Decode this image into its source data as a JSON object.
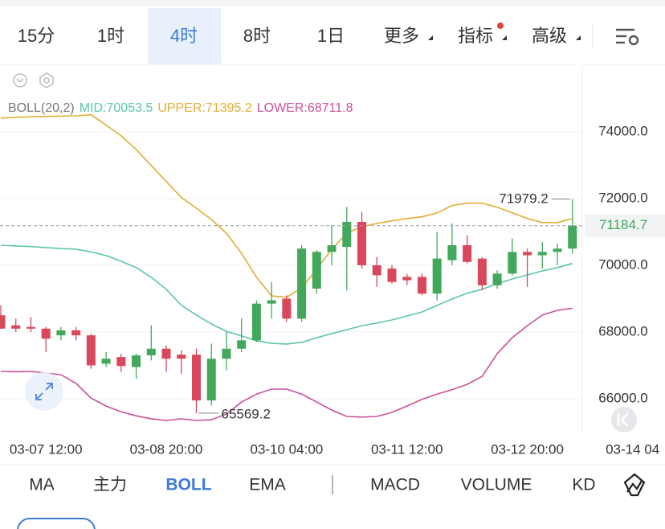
{
  "tabs": [
    {
      "label": "15分",
      "selected": false
    },
    {
      "label": "1时",
      "selected": false
    },
    {
      "label": "4时",
      "selected": true
    },
    {
      "label": "8时",
      "selected": false
    },
    {
      "label": "1日",
      "selected": false
    },
    {
      "label": "更多",
      "selected": false
    },
    {
      "label": "指标",
      "selected": false
    },
    {
      "label": "高级",
      "selected": false
    }
  ],
  "indicator_tabs": [
    {
      "label": "MA",
      "selected": false
    },
    {
      "label": "主力",
      "selected": false
    },
    {
      "label": "BOLL",
      "selected": true
    },
    {
      "label": "EMA",
      "selected": false
    },
    {
      "label": "MACD",
      "selected": false
    },
    {
      "label": "VOLUME",
      "selected": false
    },
    {
      "label": "KD",
      "selected": false
    }
  ],
  "chart_data": {
    "type": "candlestick",
    "legend_title": "BOLL(20,2)",
    "categories": [
      null,
      null,
      null,
      "03-07 12:00",
      null,
      null,
      null,
      null,
      null,
      null,
      null,
      "03-08 20:00",
      null,
      null,
      null,
      null,
      null,
      null,
      null,
      "03-10 04:00",
      null,
      null,
      null,
      null,
      null,
      null,
      null,
      "03-11 12:00",
      null,
      null,
      null,
      null,
      null,
      null,
      null,
      "03-12 20:00",
      null,
      null,
      null,
      null,
      null,
      null,
      "03-14 04"
    ],
    "open": [
      68500,
      68200,
      68150,
      68100,
      67900,
      68050,
      67900,
      67050,
      67250,
      66950,
      67300,
      67500,
      67320,
      67320,
      65950,
      67200,
      67500,
      67750,
      68850,
      69000,
      68400,
      69300,
      70400,
      70550,
      71300,
      70000,
      69900,
      69650,
      69650,
      69150,
      70150,
      70600,
      70200,
      69400,
      69750,
      70400,
      70300,
      70400,
      70500,
      null,
      null,
      null,
      null
    ],
    "high": [
      68800,
      68400,
      68450,
      68150,
      68150,
      68150,
      67950,
      67400,
      67350,
      67350,
      68200,
      67600,
      67450,
      67500,
      67650,
      68000,
      68400,
      68950,
      69500,
      69100,
      70600,
      70450,
      71200,
      71750,
      71600,
      70250,
      70000,
      69750,
      69750,
      71000,
      71250,
      70900,
      70250,
      69850,
      70800,
      70500,
      70700,
      70650,
      71979.2,
      null,
      null,
      null,
      null
    ],
    "low": [
      68100,
      68000,
      68000,
      67400,
      67750,
      67750,
      66900,
      66950,
      66800,
      66600,
      67150,
      66800,
      66750,
      65569.2,
      65800,
      66850,
      67400,
      67700,
      68400,
      68300,
      68300,
      69150,
      70000,
      69250,
      69900,
      69350,
      69450,
      69400,
      69100,
      68950,
      70000,
      70050,
      69250,
      69300,
      69700,
      69350,
      69900,
      70000,
      70350,
      null,
      null,
      null,
      null
    ],
    "close": [
      68100,
      68100,
      68100,
      67800,
      68050,
      67900,
      67000,
      67200,
      66980,
      67300,
      67500,
      67200,
      67200,
      65950,
      67200,
      67500,
      67750,
      68850,
      68950,
      68400,
      70500,
      70400,
      70600,
      71300,
      70000,
      69700,
      69500,
      69550,
      69150,
      70200,
      70600,
      70100,
      69400,
      69750,
      70400,
      70300,
      70400,
      70500,
      71184.7,
      null,
      null,
      null,
      null
    ],
    "up_color": "#43a85c",
    "down_color": "#d8475b",
    "series": [
      {
        "name": "MID:70053.5",
        "color": "#5cc6a8",
        "values": [
          70600,
          70580,
          70560,
          70530,
          70500,
          70480,
          70400,
          70290,
          70120,
          69930,
          69640,
          69280,
          68800,
          68510,
          68240,
          68020,
          67880,
          67740,
          67660,
          67640,
          67690,
          67830,
          67950,
          68070,
          68190,
          68270,
          68360,
          68480,
          68600,
          68800,
          68990,
          69160,
          69280,
          69450,
          69590,
          69710,
          69830,
          69930,
          70053.5,
          null,
          null,
          null,
          null
        ]
      },
      {
        "name": "UPPER:71395.2",
        "color": "#e3ad33",
        "values": [
          74410,
          74430,
          74450,
          74460,
          74470,
          74480,
          74510,
          74200,
          73880,
          73470,
          72990,
          72510,
          72030,
          71710,
          71370,
          70960,
          70360,
          69640,
          69080,
          69040,
          69320,
          69880,
          70480,
          70960,
          71160,
          71250,
          71330,
          71400,
          71450,
          71570,
          71790,
          71860,
          71860,
          71740,
          71570,
          71400,
          71280,
          71280,
          71395.2,
          null,
          null,
          null,
          null
        ]
      },
      {
        "name": "LOWER:68711.8",
        "color": "#cc4f9b",
        "values": [
          66820,
          66810,
          66820,
          66770,
          66720,
          66460,
          66020,
          65780,
          65610,
          65490,
          65400,
          65350,
          65400,
          65350,
          65370,
          65540,
          65900,
          66140,
          66290,
          66290,
          66140,
          65900,
          65660,
          65470,
          65450,
          65470,
          65590,
          65780,
          65980,
          66140,
          66270,
          66430,
          66670,
          67350,
          67830,
          68190,
          68510,
          68650,
          68711.8,
          null,
          null,
          null,
          null
        ]
      }
    ],
    "ylim": [
      64940,
      75900
    ],
    "yticks": [
      {
        "value": 66000,
        "label": "66000.0"
      },
      {
        "value": 68000,
        "label": "68000.0"
      },
      {
        "value": 70000,
        "label": "70000.0"
      },
      {
        "value": 72000,
        "label": "72000.0"
      },
      {
        "value": 74000,
        "label": "74000.0"
      }
    ],
    "grid": true
  }
}
